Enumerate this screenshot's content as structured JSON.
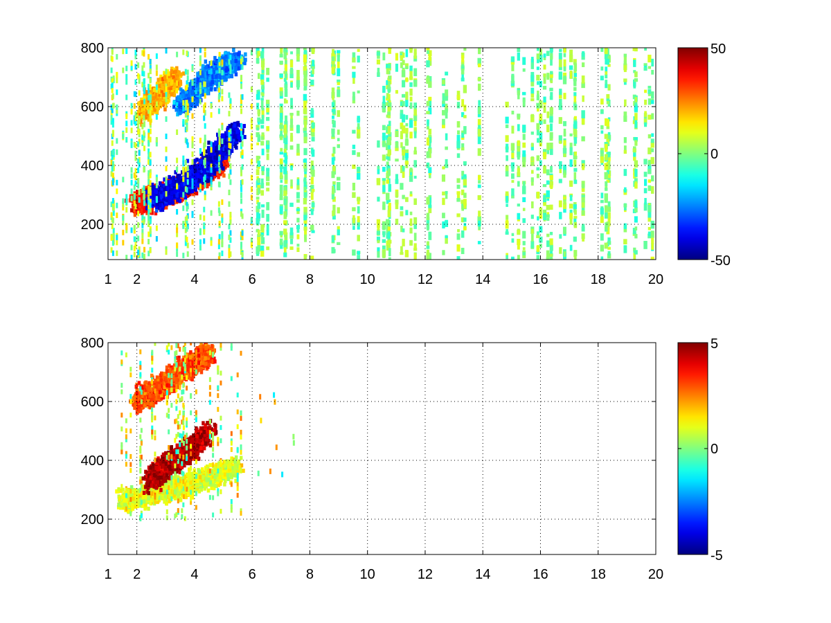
{
  "figure": {
    "background": "#ffffff"
  },
  "chart_data": [
    {
      "type": "heatmap",
      "title": "",
      "xlabel": "",
      "ylabel": "",
      "xlim": [
        1,
        20
      ],
      "ylim": [
        80,
        800
      ],
      "xscale": "linear",
      "yscale": "linear",
      "grid": true,
      "x_ticks": [
        "1",
        "2",
        "4",
        "6",
        "8",
        "10",
        "12",
        "14",
        "16",
        "18",
        "20"
      ],
      "x_tick_values": [
        1,
        2,
        4,
        6,
        8,
        10,
        12,
        14,
        16,
        18,
        20
      ],
      "y_ticks": [
        "200",
        "400",
        "600",
        "800"
      ],
      "y_tick_values": [
        200,
        400,
        600,
        800
      ],
      "colorbar": {
        "min": -50,
        "max": 50,
        "ticks": [
          "50",
          "0",
          "-50"
        ],
        "tick_values": [
          50,
          0,
          -50
        ],
        "colormap": "jet"
      },
      "features": [
        {
          "description": "positive ridge",
          "x": [
            2.0,
            2.5,
            3.0,
            3.5,
            4.0,
            4.5,
            5.0
          ],
          "y": [
            270,
            285,
            300,
            320,
            350,
            380,
            420
          ],
          "value": 35
        },
        {
          "description": "negative band",
          "x": [
            2.5,
            3.0,
            3.5,
            4.0,
            4.5,
            5.0,
            5.5
          ],
          "y": [
            290,
            300,
            330,
            360,
            400,
            460,
            520
          ],
          "value": -40
        },
        {
          "description": "upper positive region",
          "x": [
            2.2,
            2.6,
            3.0,
            3.4
          ],
          "y": [
            580,
            620,
            660,
            700
          ],
          "value": 20
        },
        {
          "description": "upper negative region",
          "x": [
            3.5,
            4.0,
            4.5,
            5.0,
            5.5
          ],
          "y": [
            600,
            650,
            700,
            730,
            760
          ],
          "value": -25
        }
      ],
      "sparse_region": {
        "x": [
          6,
          20
        ],
        "y": [
          80,
          800
        ],
        "value_range": [
          -10,
          10
        ]
      }
    },
    {
      "type": "heatmap",
      "title": "",
      "xlabel": "",
      "ylabel": "",
      "xlim": [
        1,
        20
      ],
      "ylim": [
        80,
        800
      ],
      "xscale": "linear",
      "yscale": "linear",
      "grid": true,
      "x_ticks": [
        "1",
        "2",
        "4",
        "6",
        "8",
        "10",
        "12",
        "14",
        "16",
        "18",
        "20"
      ],
      "x_tick_values": [
        1,
        2,
        4,
        6,
        8,
        10,
        12,
        14,
        16,
        18,
        20
      ],
      "y_ticks": [
        "200",
        "400",
        "600",
        "800"
      ],
      "y_tick_values": [
        200,
        400,
        600,
        800
      ],
      "colorbar": {
        "min": -5,
        "max": 5,
        "ticks": [
          "5",
          "0",
          "-5"
        ],
        "tick_values": [
          5,
          0,
          -5
        ],
        "colormap": "jet"
      },
      "features": [
        {
          "description": "lower band near zero",
          "x": [
            1.5,
            2.5,
            3.5,
            4.5,
            5.5
          ],
          "y": [
            260,
            285,
            310,
            340,
            380
          ],
          "value": 1
        },
        {
          "description": "positive streaks",
          "x": [
            2.5,
            3.0,
            3.5,
            4.0,
            4.5
          ],
          "y": [
            330,
            380,
            410,
            450,
            500
          ],
          "value": 4.5
        },
        {
          "description": "upper positive region",
          "x": [
            2.0,
            2.5,
            3.0,
            3.5,
            4.0,
            4.5
          ],
          "y": [
            600,
            630,
            660,
            700,
            730,
            760
          ],
          "value": 3
        }
      ],
      "data_extent": {
        "x": [
          1.4,
          7.6
        ],
        "y": [
          100,
          800
        ]
      }
    }
  ]
}
